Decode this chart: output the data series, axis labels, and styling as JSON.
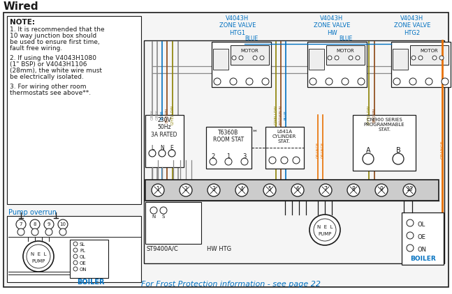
{
  "title": "Wired",
  "bg_color": "#ffffff",
  "note_lines": [
    "NOTE:",
    "1. It is recommended that the",
    "10 way junction box should",
    "be used to ensure first time,",
    "fault free wiring.",
    " ",
    "2. If using the V4043H1080",
    "(1\" BSP) or V4043H1106",
    "(28mm), the white wire must",
    "be electrically isolated.",
    " ",
    "3. For wiring other room",
    "thermostats see above**."
  ],
  "footer_text": "For Frost Protection information - see page 22",
  "footer_color": "#0070c0",
  "wire_grey": "#888888",
  "wire_blue": "#0070c0",
  "wire_brown": "#8B4513",
  "wire_orange": "#E87000",
  "wire_gyellow": "#8B8000",
  "zv_color": "#0070c0",
  "black": "#1a1a1a",
  "pump_overrun": "Pump overrun",
  "boiler_lbl": "BOILER",
  "mains_lbl": "230V\n50Hz\n3A RATED",
  "room_stat_lbl": "T6360B\nROOM STAT",
  "cyl_stat_lbl": "L641A\nCYLINDER\nSTAT.",
  "prog_lbl": "CM900 SERIES\nPROGRAMMABLE\nSTAT.",
  "st9400_lbl": "ST9400A/C",
  "hwhtg_lbl": "HW HTG",
  "pump_lbl": "PUMP",
  "zv1_lbl": "V4043H\nZONE VALVE\nHTG1",
  "zv2_lbl": "V4043H\nZONE VALVE\nHW",
  "zv3_lbl": "V4043H\nZONE VALVE\nHTG2"
}
